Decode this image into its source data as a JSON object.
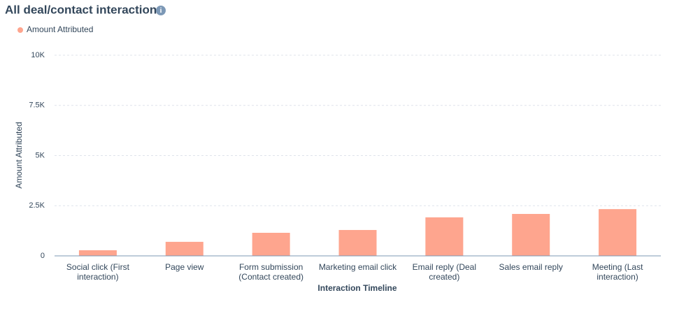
{
  "chart_data": {
    "type": "bar",
    "title": "All deal/contact interactions",
    "x_label": "Interaction Timeline",
    "y_label": "Amount Attributed",
    "categories": [
      "Social click (First interaction)",
      "Page view",
      "Form submission (Contact created)",
      "Marketing email click",
      "Email reply (Deal created)",
      "Sales email reply",
      "Meeting (Last interaction)"
    ],
    "series": [
      {
        "name": "Amount Attributed",
        "color": "#fea58e",
        "values": [
          280,
          700,
          1150,
          1290,
          1920,
          2090,
          2330
        ]
      }
    ],
    "ylim": [
      0,
      10000
    ],
    "yticks": [
      0,
      {
        "value": 2500,
        "label": "2.5K"
      },
      {
        "value": 5000,
        "label": "5K"
      },
      {
        "value": 7500,
        "label": "7.5K"
      },
      {
        "value": 10000,
        "label": "10K"
      }
    ],
    "grid": true,
    "legend": "top-left"
  }
}
